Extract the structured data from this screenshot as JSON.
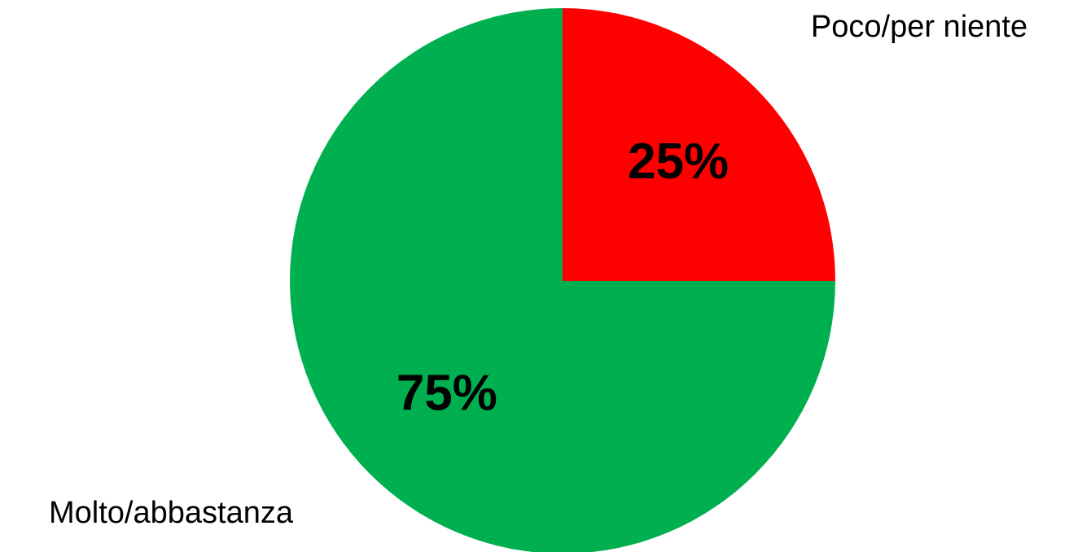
{
  "chart_data": {
    "type": "pie",
    "categories": [
      "Poco/per niente",
      "Molto/abbastanza"
    ],
    "values": [
      25,
      75
    ],
    "value_labels": [
      "25%",
      "75%"
    ],
    "colors": [
      "#ff0000",
      "#00b050"
    ]
  }
}
